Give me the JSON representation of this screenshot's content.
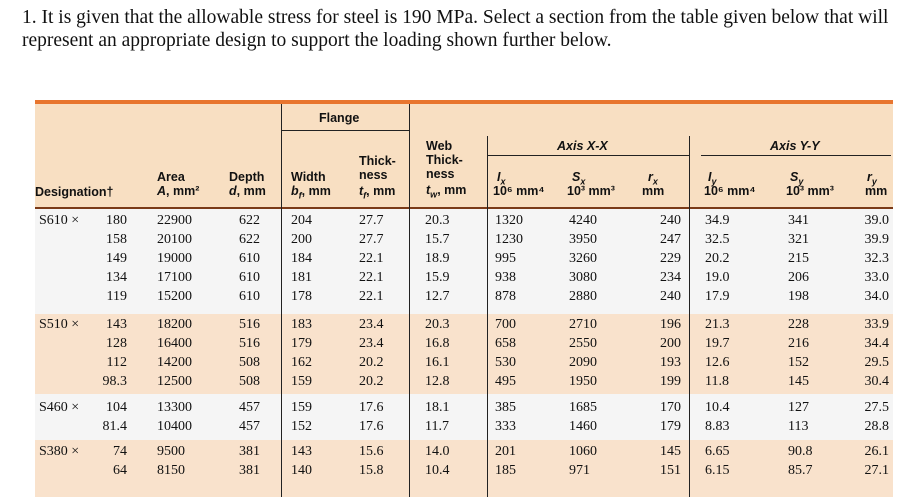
{
  "problem": {
    "text": "1. It is given that the allowable stress for steel is 190 MPa. Select a section from the table given below that will represent an appropriate design to support the loading shown further below."
  },
  "table": {
    "headers": {
      "flange": "Flange",
      "web": "Web",
      "web_thick": "Thick-",
      "web_ness": "ness",
      "web_unit": "t_w, mm",
      "axis_xx": "Axis X-X",
      "axis_yy": "Axis Y-Y",
      "designation": "Designation†",
      "area": "Area",
      "area_unit": "A, mm²",
      "depth": "Depth",
      "depth_unit": "d, mm",
      "width": "Width",
      "width_unit": "b_f, mm",
      "thick": "Thick-",
      "thick_ness": "ness",
      "thick_unit": "t_f, mm",
      "ix": "I_x",
      "ix_unit": "10⁶ mm⁴",
      "sx": "S_x",
      "sx_unit": "10³ mm³",
      "rx": "r_x",
      "rx_unit": "mm",
      "iy": "I_y",
      "iy_unit": "10⁶ mm⁴",
      "sy": "S_y",
      "sy_unit": "10³ mm³",
      "ry": "r_y",
      "ry_unit": "mm"
    },
    "rows": [
      {
        "prefix": "S610 ×",
        "mass": "180",
        "area": "22900",
        "depth": "622",
        "width": "204",
        "tf": "27.7",
        "tw": "20.3",
        "ix": "1320",
        "sx": "4240",
        "rx": "240",
        "iy": "34.9",
        "sy": "341",
        "ry": "39.0"
      },
      {
        "prefix": "",
        "mass": "158",
        "area": "20100",
        "depth": "622",
        "width": "200",
        "tf": "27.7",
        "tw": "15.7",
        "ix": "1230",
        "sx": "3950",
        "rx": "247",
        "iy": "32.5",
        "sy": "321",
        "ry": "39.9"
      },
      {
        "prefix": "",
        "mass": "149",
        "area": "19000",
        "depth": "610",
        "width": "184",
        "tf": "22.1",
        "tw": "18.9",
        "ix": "995",
        "sx": "3260",
        "rx": "229",
        "iy": "20.2",
        "sy": "215",
        "ry": "32.3"
      },
      {
        "prefix": "",
        "mass": "134",
        "area": "17100",
        "depth": "610",
        "width": "181",
        "tf": "22.1",
        "tw": "15.9",
        "ix": "938",
        "sx": "3080",
        "rx": "234",
        "iy": "19.0",
        "sy": "206",
        "ry": "33.0"
      },
      {
        "prefix": "",
        "mass": "119",
        "area": "15200",
        "depth": "610",
        "width": "178",
        "tf": "22.1",
        "tw": "12.7",
        "ix": "878",
        "sx": "2880",
        "rx": "240",
        "iy": "17.9",
        "sy": "198",
        "ry": "34.0"
      },
      {
        "prefix": "S510 ×",
        "mass": "143",
        "area": "18200",
        "depth": "516",
        "width": "183",
        "tf": "23.4",
        "tw": "20.3",
        "ix": "700",
        "sx": "2710",
        "rx": "196",
        "iy": "21.3",
        "sy": "228",
        "ry": "33.9"
      },
      {
        "prefix": "",
        "mass": "128",
        "area": "16400",
        "depth": "516",
        "width": "179",
        "tf": "23.4",
        "tw": "16.8",
        "ix": "658",
        "sx": "2550",
        "rx": "200",
        "iy": "19.7",
        "sy": "216",
        "ry": "34.4"
      },
      {
        "prefix": "",
        "mass": "112",
        "area": "14200",
        "depth": "508",
        "width": "162",
        "tf": "20.2",
        "tw": "16.1",
        "ix": "530",
        "sx": "2090",
        "rx": "193",
        "iy": "12.6",
        "sy": "152",
        "ry": "29.5"
      },
      {
        "prefix": "",
        "mass": "98.3",
        "area": "12500",
        "depth": "508",
        "width": "159",
        "tf": "20.2",
        "tw": "12.8",
        "ix": "495",
        "sx": "1950",
        "rx": "199",
        "iy": "11.8",
        "sy": "145",
        "ry": "30.4"
      },
      {
        "prefix": "S460 ×",
        "mass": "104",
        "area": "13300",
        "depth": "457",
        "width": "159",
        "tf": "17.6",
        "tw": "18.1",
        "ix": "385",
        "sx": "1685",
        "rx": "170",
        "iy": "10.4",
        "sy": "127",
        "ry": "27.5"
      },
      {
        "prefix": "",
        "mass": "81.4",
        "area": "10400",
        "depth": "457",
        "width": "152",
        "tf": "17.6",
        "tw": "11.7",
        "ix": "333",
        "sx": "1460",
        "rx": "179",
        "iy": "8.83",
        "sy": "113",
        "ry": "28.8"
      },
      {
        "prefix": "S380 ×",
        "mass": "74",
        "area": "9500",
        "depth": "381",
        "width": "143",
        "tf": "15.6",
        "tw": "14.0",
        "ix": "201",
        "sx": "1060",
        "rx": "145",
        "iy": "6.65",
        "sy": "90.8",
        "ry": "26.1"
      },
      {
        "prefix": "",
        "mass": "64",
        "area": "8150",
        "depth": "381",
        "width": "140",
        "tf": "15.8",
        "tw": "10.4",
        "ix": "185",
        "sx": "971",
        "rx": "151",
        "iy": "6.15",
        "sy": "85.7",
        "ry": "27.1"
      }
    ]
  }
}
